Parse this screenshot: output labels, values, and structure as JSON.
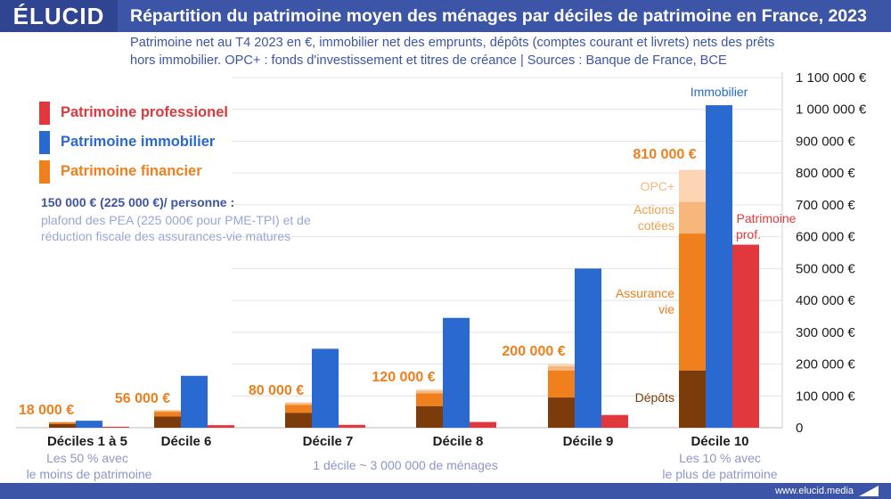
{
  "header": {
    "logo": "ÉLUCID",
    "title": "Répartition du patrimoine moyen des ménages par déciles de patrimoine en France, 2023",
    "subtitle_line1": "Patrimoine net au T4 2023 en €, immobilier net des emprunts, dépôts (comptes courant et livrets) nets des prêts",
    "subtitle_line2": "hors immobilier. OPC+ : fonds d'investissement et titres de créance  |  Sources : Banque de France, BCE"
  },
  "legend": [
    {
      "label": "Patrimoine professionel",
      "color": "#e0383d"
    },
    {
      "label": "Patrimoine immobilier",
      "color": "#2a69cf"
    },
    {
      "label": "Patrimoine financier",
      "color": "#f07f1d"
    }
  ],
  "note": {
    "heading": "150 000 € (225 000 €)/ personne :",
    "body": "plafond des PEA (225 000€ pour PME-TPI) et de réduction fiscale des assurances-vie matures"
  },
  "footer": {
    "site": "www.elucid.media"
  },
  "colors": {
    "depots": "#7b3b0b",
    "assurance": "#f07f1d",
    "actions": "#f7b77b",
    "opc": "#fbd5b4",
    "immobilier": "#2a69cf",
    "professionnel": "#e0383d"
  },
  "chart_data": {
    "type": "bar",
    "stacked_financial": true,
    "categories": [
      "Déciles 1 à 5",
      "Décile 6",
      "Décile 7",
      "Décile 8",
      "Décile 9",
      "Décile 10"
    ],
    "series": [
      {
        "name": "Dépôts",
        "values": [
          12000,
          35000,
          47000,
          68000,
          95000,
          180000
        ]
      },
      {
        "name": "Assurance vie",
        "values": [
          5000,
          15000,
          25000,
          40000,
          85000,
          430000
        ]
      },
      {
        "name": "Actions cotées",
        "values": [
          1000,
          4000,
          5000,
          8000,
          13000,
          100000
        ]
      },
      {
        "name": "OPC+",
        "values": [
          0,
          2000,
          3000,
          4000,
          7000,
          100000
        ]
      },
      {
        "name": "Patrimoine immobilier",
        "values": [
          22000,
          163000,
          248000,
          345000,
          500000,
          1013000
        ]
      },
      {
        "name": "Patrimoine professionel",
        "values": [
          3000,
          8000,
          9000,
          18000,
          40000,
          575000
        ]
      }
    ],
    "totals_financial": [
      "18 000 €",
      "56 000 €",
      "80 000 €",
      "120 000 €",
      "200 000 €",
      "810 000 €"
    ],
    "y_ticks": [
      0,
      100000,
      200000,
      300000,
      400000,
      500000,
      600000,
      700000,
      800000,
      900000,
      1000000,
      1100000
    ],
    "y_tick_labels": [
      "0",
      "100 000 €",
      "200 000 €",
      "300 000 €",
      "400 000 €",
      "500 000 €",
      "600 000 €",
      "700 000 €",
      "800 000 €",
      "900 000 €",
      "1 000 000 €",
      "1 100 000 €"
    ],
    "ylim": [
      0,
      1100000
    ],
    "annotations": {
      "immobilier": "Immobilier",
      "opc": "OPC+",
      "actions_l1": "Actions",
      "actions_l2": "cotées",
      "assurance_l1": "Assurance",
      "assurance_l2": "vie",
      "depots": "Dépôts",
      "prof_l1": "Patrimoine",
      "prof_l2": "prof."
    },
    "sublabels": {
      "left_l1": "Les 50 % avec",
      "left_l2": "le moins de patrimoine",
      "center": "1 décile ~ 3 000 000 de ménages",
      "right_l1": "Les 10 % avec",
      "right_l2": "le plus de patrimoine"
    }
  }
}
